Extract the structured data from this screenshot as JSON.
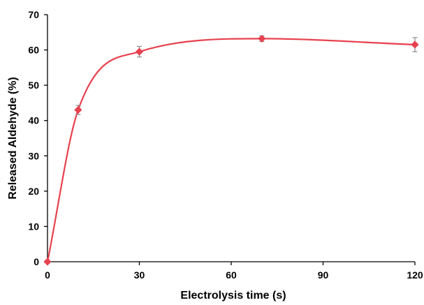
{
  "chart_data": {
    "type": "line",
    "xlabel": "Electrolysis time (s)",
    "ylabel": "Released  Aldehyde  (%)",
    "xlim": [
      0,
      120
    ],
    "ylim": [
      0,
      70
    ],
    "xticks": [
      0,
      30,
      60,
      90,
      120
    ],
    "yticks": [
      0,
      10,
      20,
      30,
      40,
      50,
      60,
      70
    ],
    "grid": false,
    "smooth": true,
    "series": [
      {
        "x": [
          0,
          10,
          30,
          70,
          120
        ],
        "y": [
          0,
          43,
          59.5,
          63.2,
          61.5
        ],
        "error": [
          0,
          1.3,
          1.5,
          0.8,
          2.0
        ]
      }
    ],
    "colors": {
      "series": "#e8414f",
      "axis": "#000000",
      "error_bar": "#8a8a8a"
    }
  }
}
